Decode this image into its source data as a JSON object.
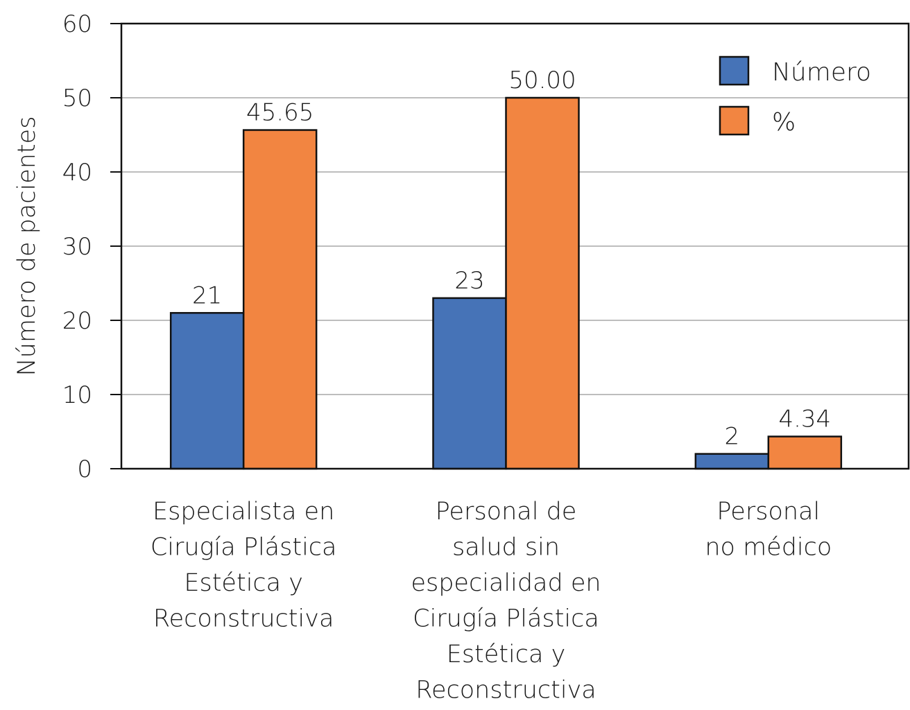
{
  "chart_data": {
    "type": "bar",
    "title": "",
    "xlabel": "",
    "ylabel": "Número de pacientes",
    "ylim": [
      0,
      60
    ],
    "yticks": [
      0,
      10,
      20,
      30,
      40,
      50,
      60
    ],
    "grid": true,
    "legend_position": "top-right",
    "categories": [
      [
        "Especialista en",
        "Cirugía Plástica",
        "Estética y",
        "Reconstructiva"
      ],
      [
        "Personal de",
        "salud sin",
        "especialidad en",
        "Cirugía Plástica",
        "Estética y",
        "Reconstructiva"
      ],
      [
        "Personal",
        "no médico"
      ]
    ],
    "series": [
      {
        "name": "Número",
        "color": "#4673b7",
        "values": [
          21,
          23,
          2
        ],
        "value_labels": [
          "21",
          "23",
          "2"
        ]
      },
      {
        "name": "%",
        "color": "#f28541",
        "values": [
          45.65,
          50.0,
          4.34
        ],
        "value_labels": [
          "45.65",
          "50.00",
          "4.34"
        ]
      }
    ]
  }
}
